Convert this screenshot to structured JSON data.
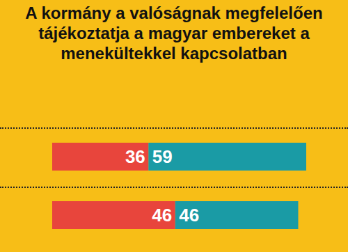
{
  "chart_data": {
    "type": "bar",
    "orientation": "horizontal",
    "stacked": true,
    "title": "A kormány a valóságnak megfelelően tájékoztatja a magyar embereket a menekültekkel kapcsolatban",
    "categories": [
      null,
      null
    ],
    "series": [
      {
        "color": "#e8453c",
        "values": [
          36,
          46
        ]
      },
      {
        "color": "#1a9ba5",
        "values": [
          59,
          46
        ]
      }
    ],
    "xlim": [
      0,
      95
    ],
    "data_labels": true,
    "tick_labels": false,
    "grid": false
  }
}
